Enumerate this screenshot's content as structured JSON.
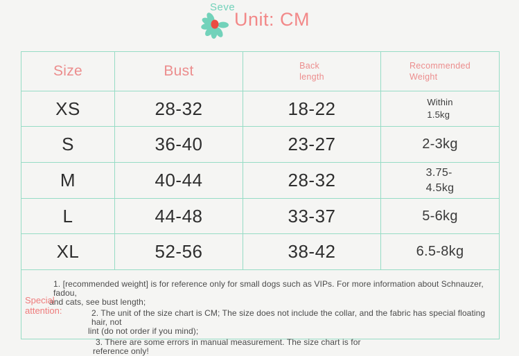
{
  "header": {
    "brand": "Seve",
    "unit_label": "Unit: CM",
    "colors": {
      "accent_pink": "#f28888",
      "accent_teal": "#72d2ba",
      "flower_center_red": "#eb4b43"
    }
  },
  "table": {
    "border_color": "#96dcc5",
    "columns": [
      {
        "key": "size",
        "label": "Size"
      },
      {
        "key": "bust",
        "label": "Bust"
      },
      {
        "key": "back-length",
        "label": "Back\nlength"
      },
      {
        "key": "recommended-weight",
        "label": "Recommended\nWeight"
      }
    ],
    "rows": [
      {
        "size": "XS",
        "bust": "28-32",
        "back_length": "18-22",
        "weight": "Within\n1.5kg"
      },
      {
        "size": "S",
        "bust": "36-40",
        "back_length": "23-27",
        "weight": "2-3kg"
      },
      {
        "size": "M",
        "bust": "40-44",
        "back_length": "28-32",
        "weight": "3.75-\n4.5kg"
      },
      {
        "size": "L",
        "bust": "44-48",
        "back_length": "33-37",
        "weight": "5-6kg"
      },
      {
        "size": "XL",
        "bust": "52-56",
        "back_length": "38-42",
        "weight": "6.5-8kg"
      }
    ]
  },
  "notes": {
    "label": "Special\nattention:",
    "items": [
      {
        "lines": [
          "1. [recommended weight] is for reference only for small dogs such as VIPs. For more information about Schnauzer, fadou,",
          "and cats, see bust length;"
        ]
      },
      {
        "lines": [
          "2. The unit of the size chart is CM; The size does not include the collar, and the fabric has special floating hair, not",
          "lint (do not order if you mind);"
        ]
      },
      {
        "lines": [
          "3. There are some errors in manual measurement. The size chart is for",
          "reference only!"
        ]
      }
    ]
  }
}
